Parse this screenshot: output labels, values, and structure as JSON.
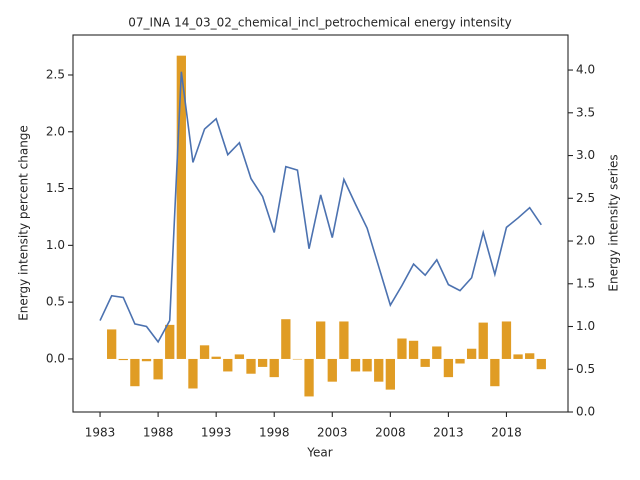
{
  "chart_data": {
    "type": "combo",
    "title": "07_INA 14_03_02_chemical_incl_petrochemical energy intensity",
    "xlabel": "Year",
    "ylabel": "Energy intensity percent change",
    "y2label": "Energy intensity series",
    "x": [
      1983,
      1984,
      1985,
      1986,
      1987,
      1988,
      1989,
      1990,
      1991,
      1992,
      1993,
      1994,
      1995,
      1996,
      1997,
      1998,
      1999,
      2000,
      2001,
      2002,
      2003,
      2004,
      2005,
      2006,
      2007,
      2008,
      2009,
      2010,
      2011,
      2012,
      2013,
      2014,
      2015,
      2016,
      2017,
      2018,
      2019,
      2020,
      2021
    ],
    "xlim": [
      1980.67,
      2023.3
    ],
    "xticks": [
      1983,
      1988,
      1993,
      1998,
      2003,
      2008,
      2013,
      2018
    ],
    "ylim": [
      -0.467,
      2.852
    ],
    "yticks": [
      {
        "value": 0,
        "label": "0.0"
      },
      0.5,
      {
        "value": 1,
        "label": "1.0"
      },
      1.5,
      {
        "value": 2,
        "label": "2.0"
      },
      2.5
    ],
    "y2lim": [
      0,
      4.41
    ],
    "y2ticks": [
      {
        "value": 0,
        "label": "0.0"
      },
      0.5,
      {
        "value": 1,
        "label": "1.0"
      },
      1.5,
      {
        "value": 2,
        "label": "2.0"
      },
      2.5,
      {
        "value": 3,
        "label": "3.0"
      },
      3.5,
      {
        "value": 4,
        "label": "4.0"
      }
    ],
    "series": [
      {
        "type": "bar",
        "axis": "y",
        "color": "#e09c24",
        "values": [
          null,
          0.26,
          -0.01,
          -0.24,
          -0.02,
          -0.18,
          0.3,
          2.67,
          -0.26,
          0.12,
          0.02,
          -0.11,
          0.04,
          -0.13,
          -0.07,
          -0.16,
          0.35,
          0.0,
          -0.33,
          0.33,
          -0.2,
          0.33,
          -0.11,
          -0.11,
          -0.2,
          -0.27,
          0.18,
          0.16,
          -0.07,
          0.11,
          -0.16,
          -0.04,
          0.09,
          0.32,
          -0.24,
          0.33,
          0.04,
          0.05,
          -0.09
        ]
      },
      {
        "type": "line",
        "axis": "y2",
        "color": "#4c72b0",
        "values": [
          1.07,
          1.36,
          1.34,
          1.03,
          1.0,
          0.82,
          1.07,
          3.98,
          2.92,
          3.31,
          3.43,
          3.01,
          3.15,
          2.73,
          2.52,
          2.1,
          2.87,
          2.83,
          1.91,
          2.54,
          2.04,
          2.72,
          2.43,
          2.15,
          1.7,
          1.25,
          1.48,
          1.73,
          1.6,
          1.78,
          1.49,
          1.42,
          1.57,
          2.1,
          1.61,
          2.16,
          2.27,
          2.39,
          2.19
        ]
      }
    ]
  }
}
